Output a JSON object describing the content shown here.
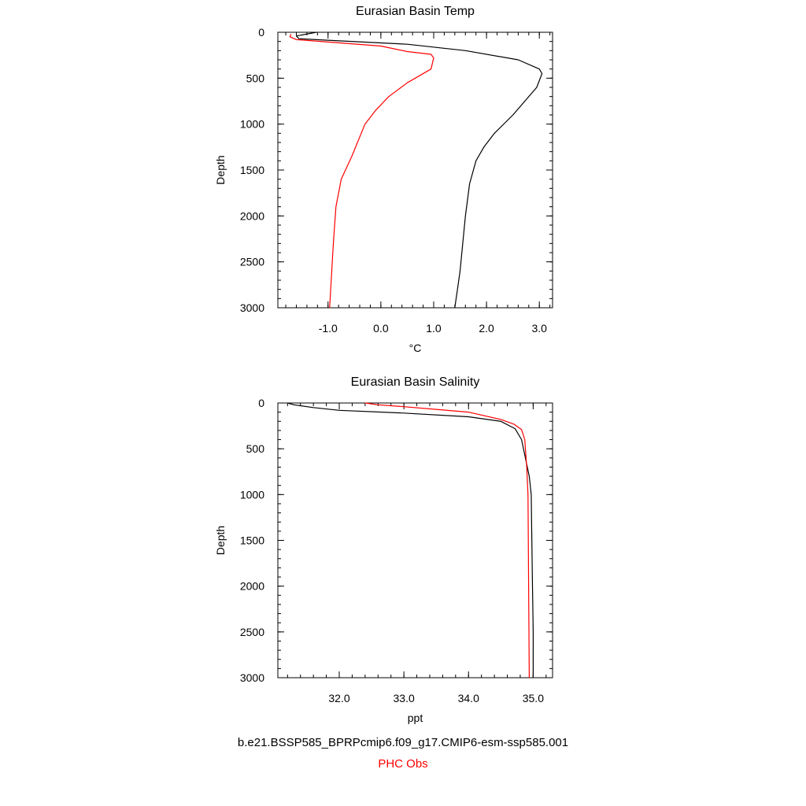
{
  "legend": {
    "model_label": "b.e21.BSSP585_BPRPcmip6.f09_g17.CMIP6-esm-ssp585.001",
    "obs_label": "PHC Obs",
    "model_color": "#000000",
    "obs_color": "#ff0000"
  },
  "chart_data": [
    {
      "type": "line",
      "title": "Eurasian Basin Temp",
      "xlabel": "°C",
      "ylabel": "Depth",
      "xlim": [
        -1.95,
        3.25
      ],
      "ylim": [
        3000,
        0
      ],
      "y_inverted": true,
      "x_ticks": [
        -1.0,
        0.0,
        1.0,
        2.0,
        3.0
      ],
      "x_tick_labels": [
        "-1.0",
        "0.0",
        "1.0",
        "2.0",
        "3.0"
      ],
      "y_ticks": [
        0,
        500,
        1000,
        1500,
        2000,
        2500,
        3000
      ],
      "y_tick_labels": [
        "0",
        "500",
        "1000",
        "1500",
        "2000",
        "2500",
        "3000"
      ],
      "series": [
        {
          "color": "#000000",
          "points": [
            [
              -1.22,
              0
            ],
            [
              -1.6,
              40
            ],
            [
              -1.55,
              70
            ],
            [
              -0.9,
              90
            ],
            [
              0.5,
              130
            ],
            [
              1.6,
              200
            ],
            [
              2.6,
              300
            ],
            [
              3.0,
              400
            ],
            [
              3.05,
              450
            ],
            [
              2.95,
              600
            ],
            [
              2.5,
              900
            ],
            [
              2.15,
              1100
            ],
            [
              1.95,
              1250
            ],
            [
              1.8,
              1400
            ],
            [
              1.68,
              1650
            ],
            [
              1.6,
              2000
            ],
            [
              1.55,
              2300
            ],
            [
              1.5,
              2600
            ],
            [
              1.45,
              2800
            ],
            [
              1.4,
              3000
            ]
          ]
        },
        {
          "color": "#ff0000",
          "points": [
            [
              -1.7,
              20
            ],
            [
              -1.72,
              50
            ],
            [
              -1.6,
              80
            ],
            [
              0.0,
              150
            ],
            [
              0.5,
              210
            ],
            [
              0.95,
              240
            ],
            [
              1.0,
              280
            ],
            [
              0.97,
              350
            ],
            [
              0.95,
              400
            ],
            [
              0.5,
              550
            ],
            [
              0.15,
              700
            ],
            [
              -0.1,
              850
            ],
            [
              -0.3,
              1000
            ],
            [
              -0.55,
              1350
            ],
            [
              -0.75,
              1600
            ],
            [
              -0.85,
              1900
            ],
            [
              -0.9,
              2300
            ],
            [
              -0.94,
              2700
            ],
            [
              -0.97,
              3000
            ]
          ]
        }
      ]
    },
    {
      "type": "line",
      "title": "Eurasian Basin Salinity",
      "xlabel": "ppt",
      "ylabel": "Depth",
      "xlim": [
        31.05,
        35.3
      ],
      "ylim": [
        3000,
        0
      ],
      "y_inverted": true,
      "x_ticks": [
        32.0,
        33.0,
        34.0,
        35.0
      ],
      "x_tick_labels": [
        "32.0",
        "33.0",
        "34.0",
        "35.0"
      ],
      "y_ticks": [
        0,
        500,
        1000,
        1500,
        2000,
        2500,
        3000
      ],
      "y_tick_labels": [
        "0",
        "500",
        "1000",
        "1500",
        "2000",
        "2500",
        "3000"
      ],
      "series": [
        {
          "color": "#000000",
          "points": [
            [
              31.2,
              0
            ],
            [
              31.3,
              20
            ],
            [
              31.6,
              50
            ],
            [
              32.0,
              80
            ],
            [
              33.0,
              110
            ],
            [
              34.0,
              150
            ],
            [
              34.5,
              200
            ],
            [
              34.72,
              280
            ],
            [
              34.82,
              400
            ],
            [
              34.88,
              600
            ],
            [
              34.94,
              800
            ],
            [
              34.97,
              1000
            ],
            [
              34.98,
              1500
            ],
            [
              34.99,
              2000
            ],
            [
              35.0,
              2500
            ],
            [
              35.0,
              3000
            ]
          ]
        },
        {
          "color": "#ff0000",
          "points": [
            [
              32.4,
              0
            ],
            [
              32.6,
              20
            ],
            [
              33.0,
              40
            ],
            [
              33.5,
              70
            ],
            [
              34.0,
              100
            ],
            [
              34.5,
              180
            ],
            [
              34.7,
              230
            ],
            [
              34.82,
              290
            ],
            [
              34.87,
              400
            ],
            [
              34.9,
              700
            ],
            [
              34.92,
              1000
            ],
            [
              34.93,
              2000
            ],
            [
              34.94,
              3000
            ]
          ]
        }
      ]
    }
  ]
}
